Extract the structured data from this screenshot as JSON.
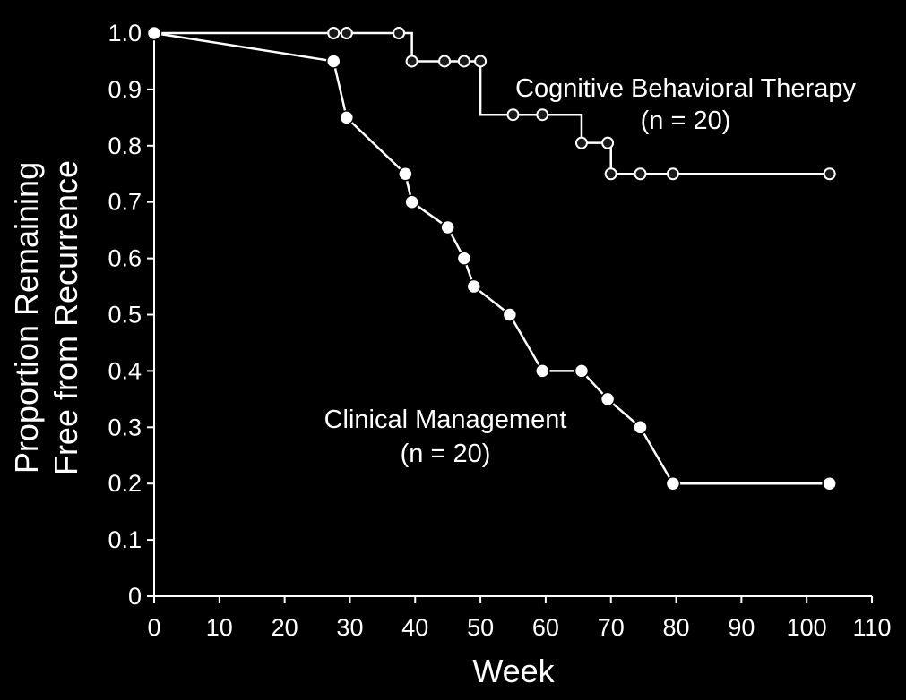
{
  "chart_data": {
    "type": "line",
    "step": true,
    "xlabel": "Week",
    "ylabel": [
      "Proportion Remaining",
      "Free from Recurrence"
    ],
    "xlim": [
      0,
      110
    ],
    "ylim": [
      0,
      1.0
    ],
    "x_ticks": [
      0,
      10,
      20,
      30,
      40,
      50,
      60,
      70,
      80,
      90,
      100,
      110
    ],
    "y_ticks": [
      0,
      0.1,
      0.2,
      0.3,
      0.4,
      0.5,
      0.6,
      0.7,
      0.8,
      0.9,
      1.0
    ],
    "y_tick_labels": [
      "0",
      "0.1",
      "0.2",
      "0.3",
      "0.4",
      "0.5",
      "0.6",
      "0.7",
      "0.8",
      "0.9",
      "1.0"
    ],
    "grid": false,
    "series": [
      {
        "key": "cbt",
        "marker": "small",
        "color": "#ffffff",
        "x": [
          0,
          27.5,
          29.5,
          37.5,
          39.5,
          44.5,
          47.5,
          50,
          50,
          55,
          59.5,
          65.5,
          69.5,
          70,
          74.5,
          79.5,
          103.5
        ],
        "y": [
          1.0,
          1.0,
          1.0,
          1.0,
          0.95,
          0.95,
          0.95,
          0.95,
          0.855,
          0.855,
          0.855,
          0.805,
          0.805,
          0.75,
          0.75,
          0.75,
          0.75
        ]
      },
      {
        "key": "cm",
        "marker": "large",
        "color": "#ffffff",
        "x": [
          0,
          27.5,
          29.5,
          38.5,
          39.5,
          45,
          47.5,
          49,
          54.5,
          59.5,
          65.5,
          69.5,
          74.5,
          79.5,
          103.5
        ],
        "y": [
          1.0,
          0.95,
          0.85,
          0.75,
          0.7,
          0.655,
          0.6,
          0.55,
          0.5,
          0.4,
          0.4,
          0.35,
          0.3,
          0.2,
          0.2
        ]
      }
    ],
    "annotations": [
      {
        "key": "cbt",
        "lines": [
          "Cognitive Behavioral Therapy",
          "(n = 20)"
        ]
      },
      {
        "key": "cm",
        "lines": [
          "Clinical Management",
          "(n = 20)"
        ]
      }
    ]
  }
}
